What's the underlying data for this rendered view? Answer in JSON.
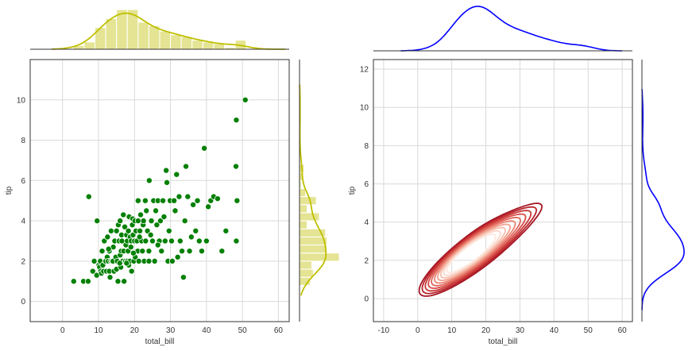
{
  "chart_data": [
    {
      "type": "scatter",
      "xlabel": "total_bill",
      "ylabel": "tip",
      "xlim": [
        -9,
        63
      ],
      "ylim": [
        -1,
        12
      ],
      "xticks": [
        "0",
        "10",
        "20",
        "30",
        "40",
        "50",
        "60"
      ],
      "yticks": [
        "0",
        "2",
        "4",
        "6",
        "8",
        "10"
      ],
      "grid": true,
      "point_color": "#008000",
      "marginal_color": "#bfbf00",
      "points": [
        [
          3.1,
          1.0
        ],
        [
          5.8,
          1.0
        ],
        [
          7.1,
          1.0
        ],
        [
          7.3,
          5.2
        ],
        [
          8.4,
          1.5
        ],
        [
          8.8,
          2.0
        ],
        [
          9.5,
          1.3
        ],
        [
          9.6,
          4.0
        ],
        [
          10.1,
          1.8
        ],
        [
          10.3,
          1.7
        ],
        [
          10.5,
          2.0
        ],
        [
          10.6,
          1.5
        ],
        [
          10.8,
          1.4
        ],
        [
          11.0,
          2.5
        ],
        [
          11.2,
          1.8
        ],
        [
          11.4,
          1.5
        ],
        [
          11.6,
          3.0
        ],
        [
          11.9,
          2.0
        ],
        [
          12.0,
          2.0
        ],
        [
          12.2,
          1.5
        ],
        [
          12.4,
          2.2
        ],
        [
          12.5,
          3.2
        ],
        [
          12.7,
          2.0
        ],
        [
          13.0,
          2.5
        ],
        [
          13.0,
          1.5
        ],
        [
          13.2,
          1.2
        ],
        [
          13.4,
          2.0
        ],
        [
          13.5,
          3.5
        ],
        [
          13.8,
          2.0
        ],
        [
          14.0,
          2.0
        ],
        [
          14.1,
          2.7
        ],
        [
          14.3,
          1.5
        ],
        [
          14.5,
          3.0
        ],
        [
          14.8,
          2.2
        ],
        [
          15.0,
          1.6
        ],
        [
          15.0,
          3.5
        ],
        [
          15.2,
          2.0
        ],
        [
          15.4,
          1.0
        ],
        [
          15.5,
          3.8
        ],
        [
          15.7,
          3.0
        ],
        [
          16.0,
          2.3
        ],
        [
          16.0,
          4.0
        ],
        [
          16.2,
          1.7
        ],
        [
          16.3,
          2.5
        ],
        [
          16.4,
          3.3
        ],
        [
          16.5,
          3.0
        ],
        [
          16.7,
          2.0
        ],
        [
          16.9,
          4.3
        ],
        [
          17.0,
          2.5
        ],
        [
          17.1,
          1.0
        ],
        [
          17.3,
          3.7
        ],
        [
          17.5,
          2.0
        ],
        [
          17.6,
          2.8
        ],
        [
          17.8,
          3.3
        ],
        [
          18.0,
          3.0
        ],
        [
          18.0,
          2.0
        ],
        [
          18.2,
          2.5
        ],
        [
          18.3,
          3.5
        ],
        [
          18.4,
          1.8
        ],
        [
          18.5,
          4.2
        ],
        [
          18.7,
          2.0
        ],
        [
          18.8,
          3.2
        ],
        [
          19.0,
          2.7
        ],
        [
          19.1,
          3.0
        ],
        [
          19.2,
          1.5
        ],
        [
          19.4,
          3.8
        ],
        [
          19.5,
          4.1
        ],
        [
          19.6,
          3.3
        ],
        [
          19.8,
          2.0
        ],
        [
          20.0,
          3.0
        ],
        [
          20.1,
          4.0
        ],
        [
          20.2,
          2.2
        ],
        [
          20.4,
          3.5
        ],
        [
          20.7,
          3.0
        ],
        [
          20.9,
          2.5
        ],
        [
          21.0,
          4.0
        ],
        [
          21.0,
          5.0
        ],
        [
          21.2,
          2.0
        ],
        [
          21.5,
          3.5
        ],
        [
          21.7,
          4.3
        ],
        [
          22.0,
          3.0
        ],
        [
          22.2,
          2.5
        ],
        [
          22.4,
          3.8
        ],
        [
          22.7,
          2.0
        ],
        [
          23.0,
          5.0
        ],
        [
          23.1,
          3.0
        ],
        [
          23.3,
          4.5
        ],
        [
          23.6,
          3.5
        ],
        [
          24.0,
          2.0
        ],
        [
          24.1,
          6.0
        ],
        [
          24.5,
          3.3
        ],
        [
          24.7,
          4.0
        ],
        [
          25.0,
          3.0
        ],
        [
          25.3,
          5.0
        ],
        [
          25.6,
          2.0
        ],
        [
          25.9,
          4.5
        ],
        [
          26.2,
          3.8
        ],
        [
          26.5,
          5.0
        ],
        [
          26.9,
          3.0
        ],
        [
          27.2,
          4.0
        ],
        [
          27.5,
          2.5
        ],
        [
          27.9,
          5.0
        ],
        [
          28.2,
          4.2
        ],
        [
          28.5,
          3.0
        ],
        [
          28.8,
          6.5
        ],
        [
          29.0,
          5.9
        ],
        [
          29.3,
          2.0
        ],
        [
          29.6,
          3.5
        ],
        [
          29.9,
          5.0
        ],
        [
          30.3,
          3.0
        ],
        [
          30.5,
          2.0
        ],
        [
          31.0,
          5.0
        ],
        [
          31.3,
          4.5
        ],
        [
          31.7,
          6.3
        ],
        [
          32.0,
          2.2
        ],
        [
          32.4,
          5.2
        ],
        [
          32.7,
          3.0
        ],
        [
          33.2,
          2.5
        ],
        [
          33.6,
          1.2
        ],
        [
          34.0,
          4.0
        ],
        [
          34.3,
          6.7
        ],
        [
          34.8,
          5.2
        ],
        [
          35.3,
          2.5
        ],
        [
          35.8,
          3.2
        ],
        [
          36.3,
          4.8
        ],
        [
          37.0,
          3.5
        ],
        [
          37.5,
          5.0
        ],
        [
          38.0,
          3.0
        ],
        [
          38.7,
          2.5
        ],
        [
          39.4,
          7.6
        ],
        [
          40.0,
          3.0
        ],
        [
          40.5,
          4.7
        ],
        [
          41.2,
          5.0
        ],
        [
          42.0,
          5.2
        ],
        [
          43.1,
          5.1
        ],
        [
          44.3,
          2.5
        ],
        [
          45.4,
          3.5
        ],
        [
          48.2,
          6.7
        ],
        [
          48.3,
          9.0
        ],
        [
          48.3,
          3.0
        ],
        [
          48.5,
          5.0
        ],
        [
          50.8,
          10.0
        ],
        [
          24.0,
          2.5
        ],
        [
          26.5,
          2.8
        ],
        [
          19.7,
          2.4
        ],
        [
          22.5,
          4.0
        ],
        [
          12.8,
          2.6
        ],
        [
          15.9,
          1.9
        ],
        [
          21.4,
          3.2
        ],
        [
          17.8,
          1.9
        ]
      ]
    },
    {
      "type": "contour",
      "xlabel": "total_bill",
      "ylabel": "tip",
      "xlim": [
        -13,
        63
      ],
      "ylim": [
        -1.2,
        12.5
      ],
      "xticks": [
        "-10",
        "0",
        "10",
        "20",
        "30",
        "40",
        "50",
        "60"
      ],
      "yticks": [
        "0",
        "2",
        "4",
        "6",
        "8",
        "10",
        "12"
      ],
      "grid": true,
      "marginal_color": "#0000ff",
      "contour_colors": [
        "#a31622",
        "#b8222b",
        "#c83535",
        "#d64b45",
        "#e0655a",
        "#ea8272",
        "#f1a08e",
        "#f6bdac",
        "#fad6c8",
        "#fde8df"
      ]
    }
  ]
}
